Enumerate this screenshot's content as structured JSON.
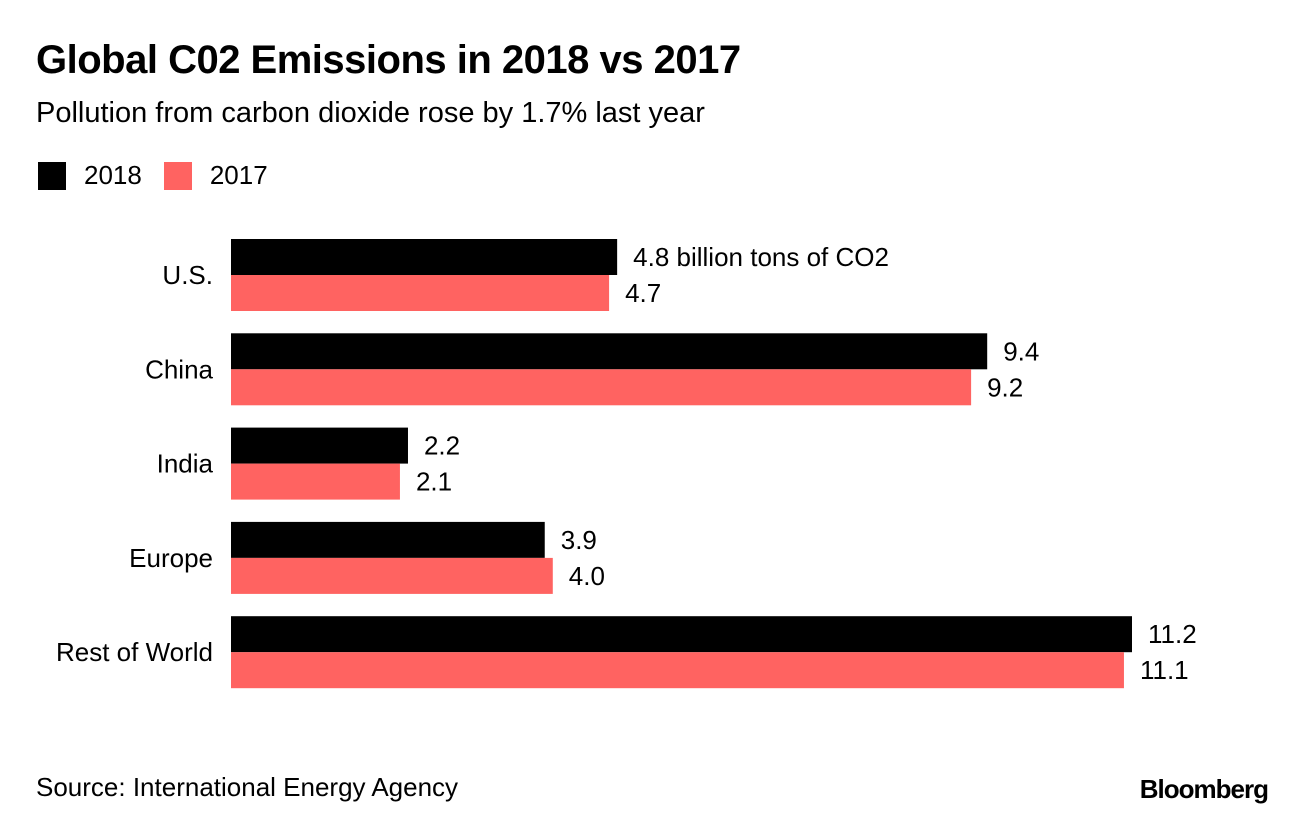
{
  "chart_data": {
    "type": "bar",
    "orientation": "horizontal",
    "title": "Global C02 Emissions in 2018 vs 2017",
    "subtitle": "Pollution from carbon dioxide rose by 1.7% last year",
    "categories": [
      "U.S.",
      "China",
      "India",
      "Europe",
      "Rest of World"
    ],
    "series": [
      {
        "name": "2018",
        "color": "#000000",
        "values": [
          4.8,
          9.4,
          2.2,
          3.9,
          11.2
        ],
        "labels": [
          "4.8 billion tons of CO2",
          "9.4",
          "2.2",
          "3.9",
          "11.2"
        ]
      },
      {
        "name": "2017",
        "color": "#ff6361",
        "values": [
          4.7,
          9.2,
          2.1,
          4.0,
          11.1
        ],
        "labels": [
          "4.7",
          "9.2",
          "2.1",
          "4.0",
          "11.1"
        ]
      }
    ],
    "xlabel": "",
    "ylabel": "",
    "xlim": [
      0,
      11.2
    ],
    "unit": "billion tons of CO2",
    "grid": false,
    "legend_position": "top-left"
  },
  "legend": [
    {
      "label": "2018",
      "color": "#000000"
    },
    {
      "label": "2017",
      "color": "#ff6361"
    }
  ],
  "footer": {
    "source": "Source: International Energy Agency",
    "brand": "Bloomberg"
  }
}
